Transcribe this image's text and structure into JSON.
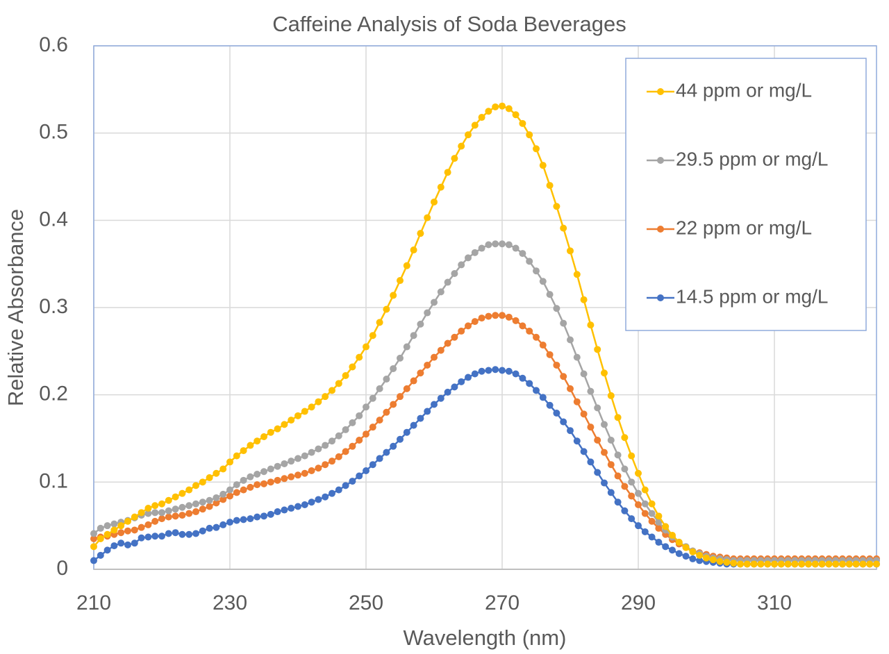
{
  "chart_data": {
    "type": "line",
    "title": "Caffeine Analysis of Soda Beverages",
    "x_label": "Wavelength (nm)",
    "y_label": "Relative Absorbance",
    "x": [
      210,
      211,
      212,
      213,
      214,
      215,
      216,
      217,
      218,
      219,
      220,
      221,
      222,
      223,
      224,
      225,
      226,
      227,
      228,
      229,
      230,
      231,
      232,
      233,
      234,
      235,
      236,
      237,
      238,
      239,
      240,
      241,
      242,
      243,
      244,
      245,
      246,
      247,
      248,
      249,
      250,
      251,
      252,
      253,
      254,
      255,
      256,
      257,
      258,
      259,
      260,
      261,
      262,
      263,
      264,
      265,
      266,
      267,
      268,
      269,
      270,
      271,
      272,
      273,
      274,
      275,
      276,
      277,
      278,
      279,
      280,
      281,
      282,
      283,
      284,
      285,
      286,
      287,
      288,
      289,
      290,
      291,
      292,
      293,
      294,
      295,
      296,
      297,
      298,
      299,
      300,
      301,
      302,
      303,
      304,
      305,
      306,
      307,
      308,
      309,
      310,
      311,
      312,
      313,
      314,
      315,
      316,
      317,
      318,
      319,
      320,
      321,
      322,
      323,
      324,
      325
    ],
    "series": [
      {
        "name": "44 ppm or mg/L",
        "color": "#ffc000",
        "values": [
          0.026,
          0.035,
          0.04,
          0.045,
          0.05,
          0.055,
          0.06,
          0.065,
          0.07,
          0.073,
          0.075,
          0.079,
          0.083,
          0.087,
          0.091,
          0.096,
          0.1,
          0.105,
          0.11,
          0.115,
          0.123,
          0.13,
          0.136,
          0.142,
          0.147,
          0.152,
          0.157,
          0.161,
          0.166,
          0.171,
          0.176,
          0.181,
          0.186,
          0.192,
          0.198,
          0.205,
          0.213,
          0.222,
          0.232,
          0.243,
          0.255,
          0.268,
          0.283,
          0.298,
          0.314,
          0.331,
          0.348,
          0.366,
          0.385,
          0.403,
          0.421,
          0.438,
          0.455,
          0.471,
          0.485,
          0.498,
          0.509,
          0.518,
          0.525,
          0.53,
          0.531,
          0.528,
          0.521,
          0.511,
          0.498,
          0.482,
          0.463,
          0.44,
          0.416,
          0.391,
          0.365,
          0.338,
          0.309,
          0.28,
          0.252,
          0.225,
          0.199,
          0.174,
          0.151,
          0.13,
          0.11,
          0.091,
          0.075,
          0.061,
          0.049,
          0.039,
          0.031,
          0.025,
          0.02,
          0.016,
          0.013,
          0.011,
          0.009,
          0.008,
          0.007,
          0.006,
          0.006,
          0.006,
          0.006,
          0.006,
          0.006,
          0.006,
          0.006,
          0.006,
          0.006,
          0.006,
          0.006,
          0.006,
          0.006,
          0.006,
          0.006,
          0.006,
          0.006,
          0.006,
          0.006,
          0.006
        ]
      },
      {
        "name": "29.5 ppm or mg/L",
        "color": "#a5a5a5",
        "values": [
          0.041,
          0.047,
          0.05,
          0.052,
          0.054,
          0.056,
          0.059,
          0.062,
          0.064,
          0.065,
          0.065,
          0.067,
          0.069,
          0.071,
          0.073,
          0.075,
          0.077,
          0.079,
          0.082,
          0.086,
          0.091,
          0.097,
          0.102,
          0.106,
          0.109,
          0.112,
          0.115,
          0.118,
          0.121,
          0.124,
          0.127,
          0.13,
          0.134,
          0.138,
          0.142,
          0.147,
          0.153,
          0.16,
          0.168,
          0.176,
          0.186,
          0.196,
          0.207,
          0.218,
          0.23,
          0.242,
          0.255,
          0.268,
          0.281,
          0.294,
          0.306,
          0.318,
          0.329,
          0.339,
          0.349,
          0.357,
          0.363,
          0.368,
          0.372,
          0.373,
          0.373,
          0.372,
          0.368,
          0.362,
          0.353,
          0.342,
          0.33,
          0.315,
          0.299,
          0.282,
          0.263,
          0.243,
          0.224,
          0.204,
          0.185,
          0.166,
          0.148,
          0.131,
          0.115,
          0.1,
          0.087,
          0.075,
          0.064,
          0.054,
          0.045,
          0.037,
          0.031,
          0.026,
          0.021,
          0.018,
          0.015,
          0.013,
          0.012,
          0.011,
          0.01,
          0.01,
          0.01,
          0.01,
          0.01,
          0.01,
          0.01,
          0.01,
          0.01,
          0.01,
          0.01,
          0.01,
          0.01,
          0.01,
          0.01,
          0.01,
          0.01,
          0.01,
          0.01,
          0.01,
          0.01,
          0.01
        ]
      },
      {
        "name": "22 ppm or mg/L",
        "color": "#ed7d31",
        "values": [
          0.035,
          0.037,
          0.038,
          0.04,
          0.042,
          0.044,
          0.045,
          0.048,
          0.051,
          0.055,
          0.058,
          0.06,
          0.061,
          0.062,
          0.064,
          0.066,
          0.069,
          0.072,
          0.076,
          0.08,
          0.084,
          0.088,
          0.091,
          0.094,
          0.097,
          0.098,
          0.1,
          0.102,
          0.104,
          0.106,
          0.108,
          0.11,
          0.113,
          0.116,
          0.12,
          0.124,
          0.129,
          0.135,
          0.141,
          0.148,
          0.155,
          0.163,
          0.171,
          0.18,
          0.189,
          0.198,
          0.207,
          0.216,
          0.225,
          0.234,
          0.243,
          0.251,
          0.259,
          0.266,
          0.273,
          0.279,
          0.284,
          0.288,
          0.29,
          0.291,
          0.291,
          0.289,
          0.285,
          0.279,
          0.273,
          0.266,
          0.257,
          0.246,
          0.234,
          0.221,
          0.207,
          0.192,
          0.178,
          0.163,
          0.148,
          0.134,
          0.12,
          0.107,
          0.095,
          0.084,
          0.074,
          0.064,
          0.055,
          0.047,
          0.04,
          0.034,
          0.029,
          0.025,
          0.021,
          0.019,
          0.017,
          0.015,
          0.014,
          0.013,
          0.012,
          0.012,
          0.012,
          0.012,
          0.012,
          0.012,
          0.012,
          0.012,
          0.012,
          0.012,
          0.012,
          0.012,
          0.012,
          0.012,
          0.012,
          0.012,
          0.012,
          0.012,
          0.012,
          0.012,
          0.012,
          0.012
        ]
      },
      {
        "name": "14.5 ppm or mg/L",
        "color": "#4472c4",
        "values": [
          0.01,
          0.016,
          0.022,
          0.027,
          0.03,
          0.028,
          0.03,
          0.036,
          0.037,
          0.038,
          0.038,
          0.041,
          0.042,
          0.04,
          0.04,
          0.041,
          0.044,
          0.047,
          0.048,
          0.051,
          0.054,
          0.056,
          0.057,
          0.058,
          0.06,
          0.061,
          0.063,
          0.066,
          0.068,
          0.07,
          0.072,
          0.074,
          0.077,
          0.08,
          0.083,
          0.087,
          0.091,
          0.096,
          0.101,
          0.107,
          0.113,
          0.12,
          0.127,
          0.134,
          0.141,
          0.149,
          0.157,
          0.165,
          0.173,
          0.181,
          0.189,
          0.196,
          0.203,
          0.209,
          0.215,
          0.22,
          0.224,
          0.227,
          0.228,
          0.229,
          0.228,
          0.227,
          0.224,
          0.219,
          0.213,
          0.205,
          0.197,
          0.188,
          0.179,
          0.169,
          0.159,
          0.147,
          0.135,
          0.123,
          0.111,
          0.099,
          0.088,
          0.077,
          0.067,
          0.058,
          0.05,
          0.043,
          0.037,
          0.031,
          0.026,
          0.022,
          0.018,
          0.015,
          0.012,
          0.01,
          0.009,
          0.008,
          0.007,
          0.006,
          0.006,
          0.006,
          0.006,
          0.006,
          0.006,
          0.006,
          0.006,
          0.006,
          0.006,
          0.006,
          0.006,
          0.006,
          0.006,
          0.006,
          0.006,
          0.006,
          0.006,
          0.006,
          0.006,
          0.006,
          0.006,
          0.006
        ]
      }
    ],
    "xlim": [
      210,
      325
    ],
    "xticks": [
      210,
      230,
      250,
      270,
      290,
      310
    ],
    "ylim": [
      0,
      0.6
    ],
    "yticks": [
      0,
      0.1,
      0.2,
      0.3,
      0.4,
      0.5,
      0.6
    ],
    "grid": true,
    "markers": true,
    "legend": "top-right"
  }
}
